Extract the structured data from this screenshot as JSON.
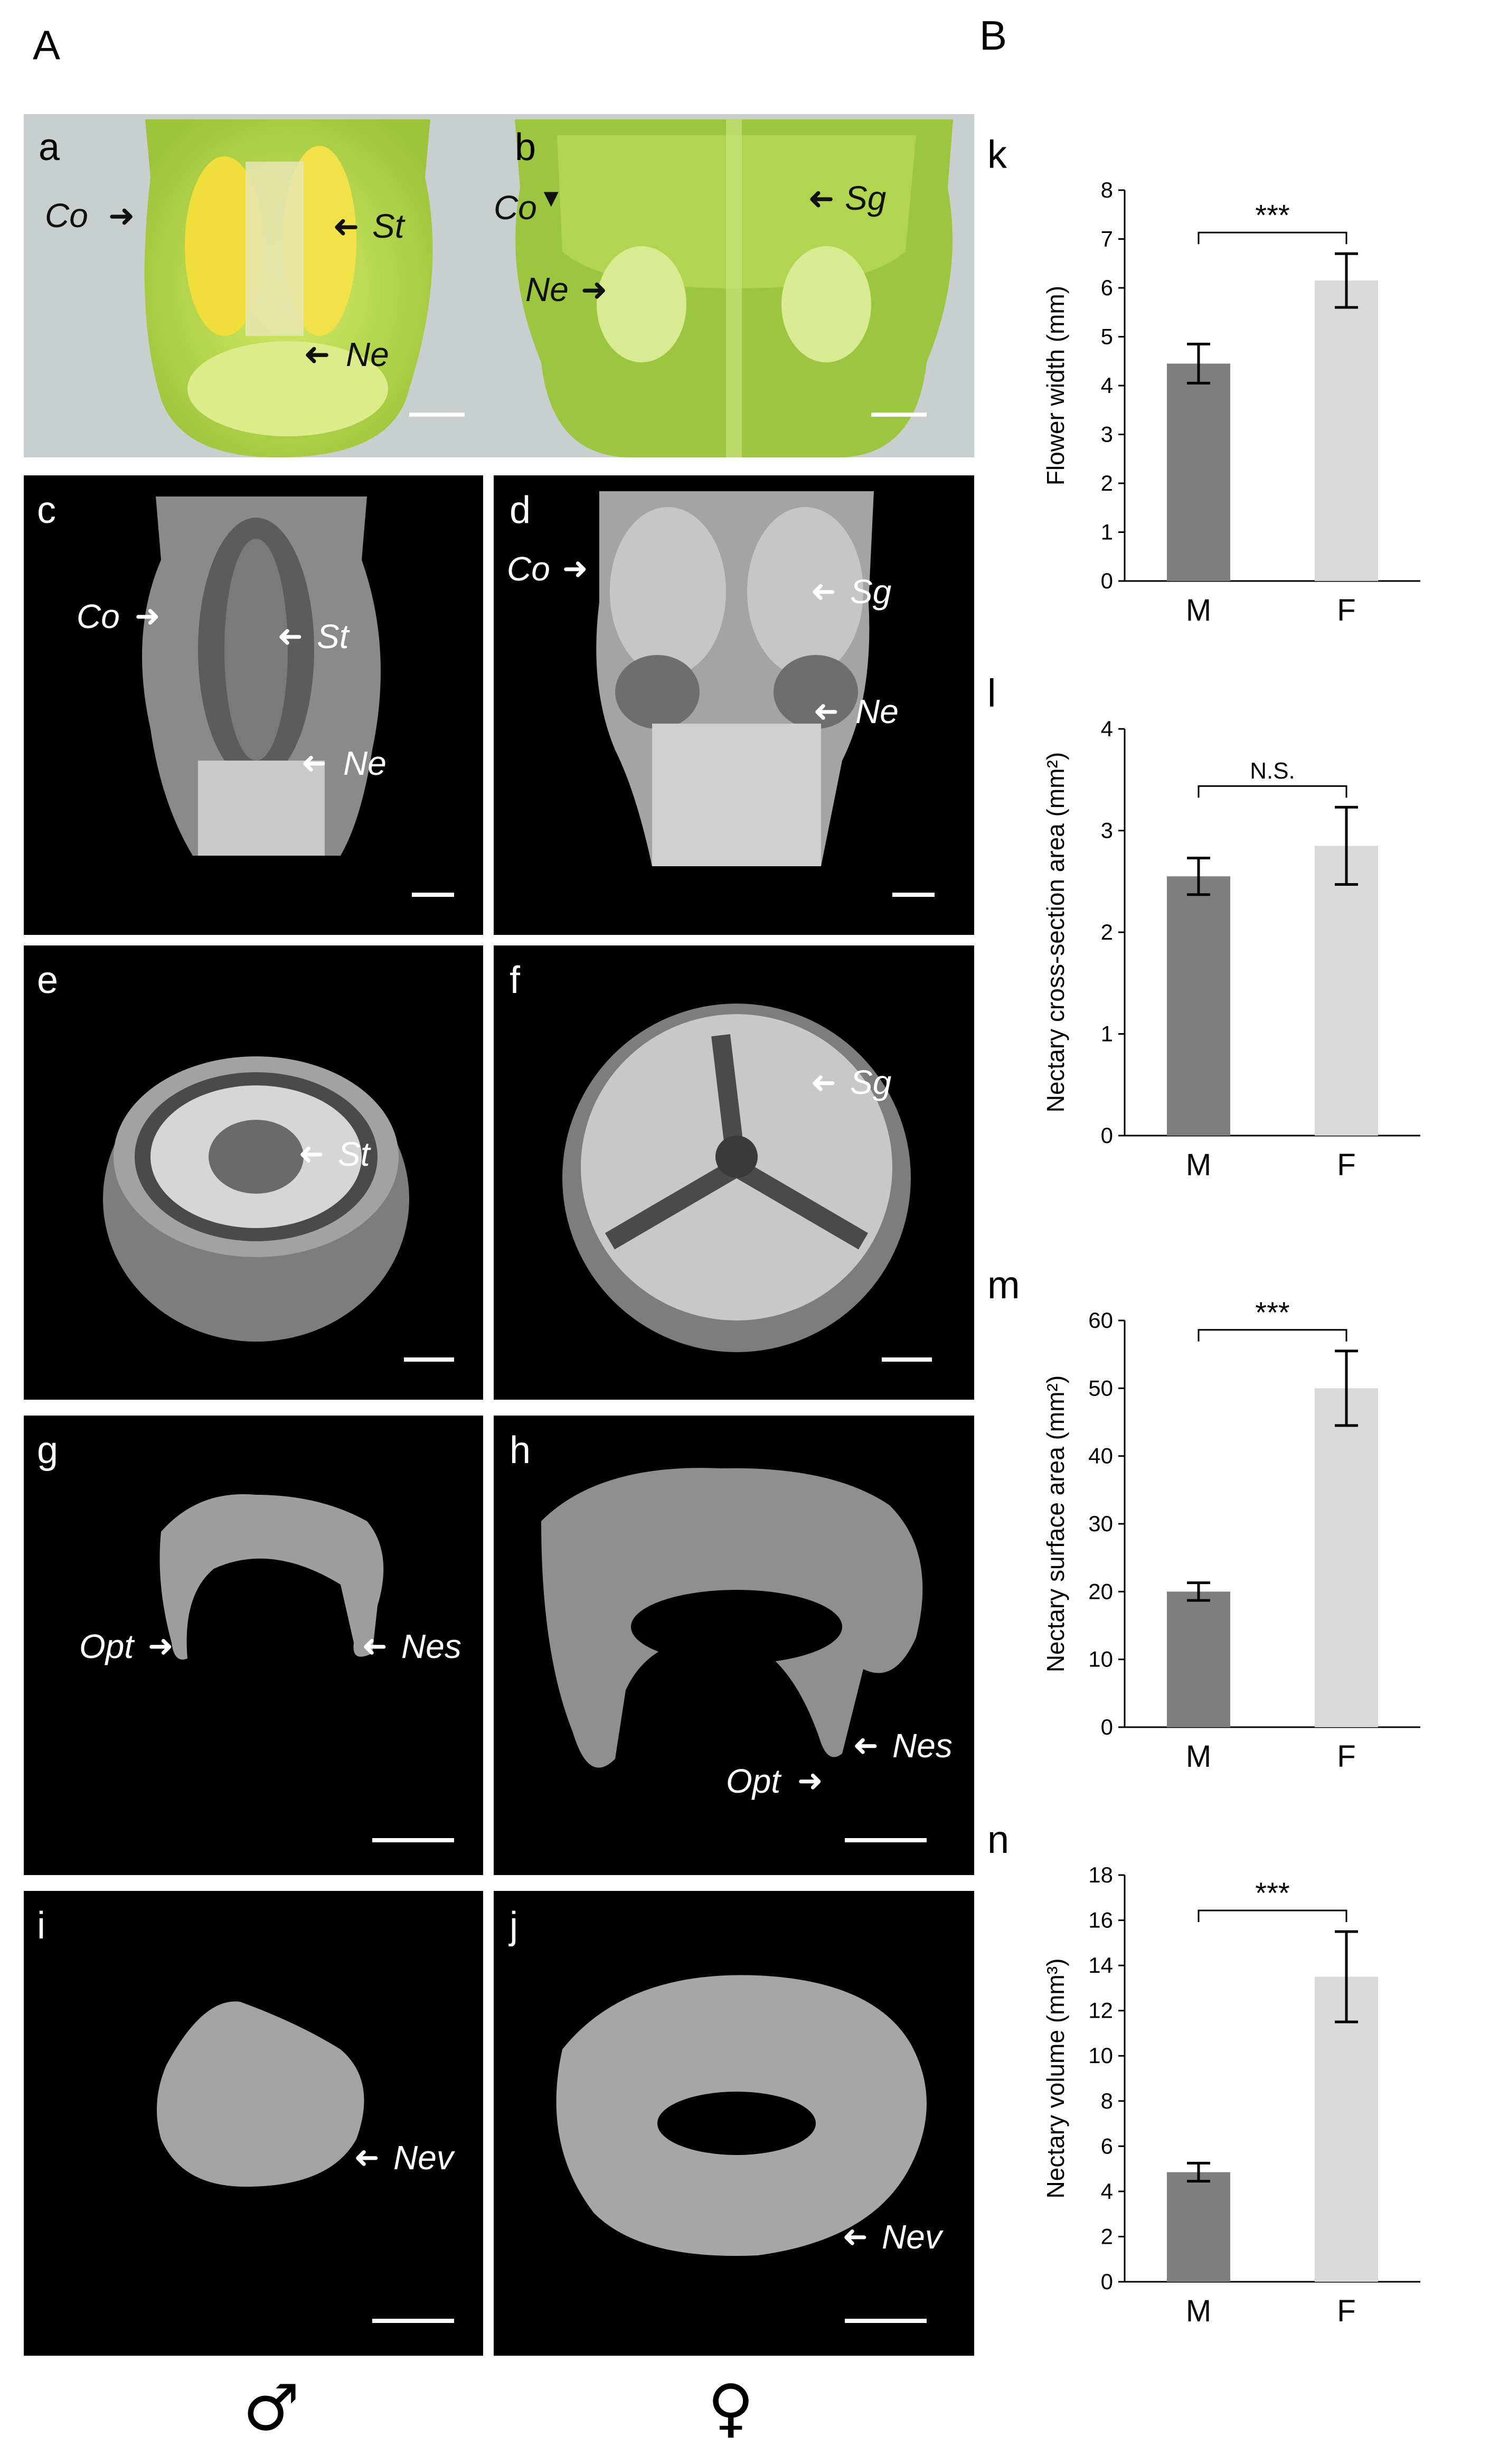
{
  "figure": {
    "panel_A_label": "A",
    "panel_B_label": "B",
    "sex_symbols": {
      "male": "♂",
      "female": "♀"
    }
  },
  "tiles": {
    "a": {
      "letter": "a",
      "labels": {
        "co": "Co",
        "st": "St",
        "ne": "Ne"
      }
    },
    "b": {
      "letter": "b",
      "labels": {
        "co": "Co",
        "sg": "Sg",
        "ne": "Ne"
      }
    },
    "c": {
      "letter": "c",
      "labels": {
        "co": "Co",
        "st": "St",
        "ne": "Ne"
      }
    },
    "d": {
      "letter": "d",
      "labels": {
        "co": "Co",
        "sg": "Sg",
        "ne": "Ne"
      }
    },
    "e": {
      "letter": "e",
      "labels": {
        "st": "St"
      }
    },
    "f": {
      "letter": "f",
      "labels": {
        "sg": "Sg"
      }
    },
    "g": {
      "letter": "g",
      "labels": {
        "opt": "Opt",
        "nes": "Nes"
      }
    },
    "h": {
      "letter": "h",
      "labels": {
        "nes": "Nes",
        "opt": "Opt"
      }
    },
    "i": {
      "letter": "i",
      "labels": {
        "nev": "Nev"
      }
    },
    "j": {
      "letter": "j",
      "labels": {
        "nev": "Nev"
      }
    }
  },
  "colors": {
    "male_bar": "#7f7f7f",
    "female_bar": "#d9d9d9",
    "photo_bg": "#c9cfcf",
    "flower_green": "#b8d84a",
    "flower_dark_green": "#8fb83a",
    "pollen_yellow": "#e8d21a",
    "ct_bg": "#000000",
    "ct_grey": "#a9a9a9"
  },
  "chart_data": [
    {
      "type": "bar",
      "panel": "k",
      "categories": [
        "M",
        "F"
      ],
      "values": [
        4.45,
        6.15
      ],
      "errors": [
        0.4,
        0.55
      ],
      "ylabel": "Flower width (mm)",
      "ylim": [
        0,
        8
      ],
      "yticks": [
        0,
        1,
        2,
        3,
        4,
        5,
        6,
        7,
        8
      ],
      "significance": "***"
    },
    {
      "type": "bar",
      "panel": "l",
      "categories": [
        "M",
        "F"
      ],
      "values": [
        2.55,
        2.85
      ],
      "errors": [
        0.18,
        0.38
      ],
      "ylabel": "Nectary cross-section area (mm²)",
      "ylim": [
        0,
        4
      ],
      "yticks": [
        0,
        1,
        2,
        3,
        4
      ],
      "significance": "N.S."
    },
    {
      "type": "bar",
      "panel": "m",
      "categories": [
        "M",
        "F"
      ],
      "values": [
        20,
        50
      ],
      "errors": [
        1.3,
        5.5
      ],
      "ylabel": "Nectary surface area (mm²)",
      "ylim": [
        0,
        60
      ],
      "yticks": [
        0,
        10,
        20,
        30,
        40,
        50,
        60
      ],
      "significance": "***"
    },
    {
      "type": "bar",
      "panel": "n",
      "categories": [
        "M",
        "F"
      ],
      "values": [
        4.85,
        13.5
      ],
      "errors": [
        0.4,
        2.0
      ],
      "ylabel": "Nectary volume (mm³)",
      "ylim": [
        0,
        18
      ],
      "yticks": [
        0,
        2,
        4,
        6,
        8,
        10,
        12,
        14,
        16,
        18
      ],
      "significance": "***"
    }
  ]
}
